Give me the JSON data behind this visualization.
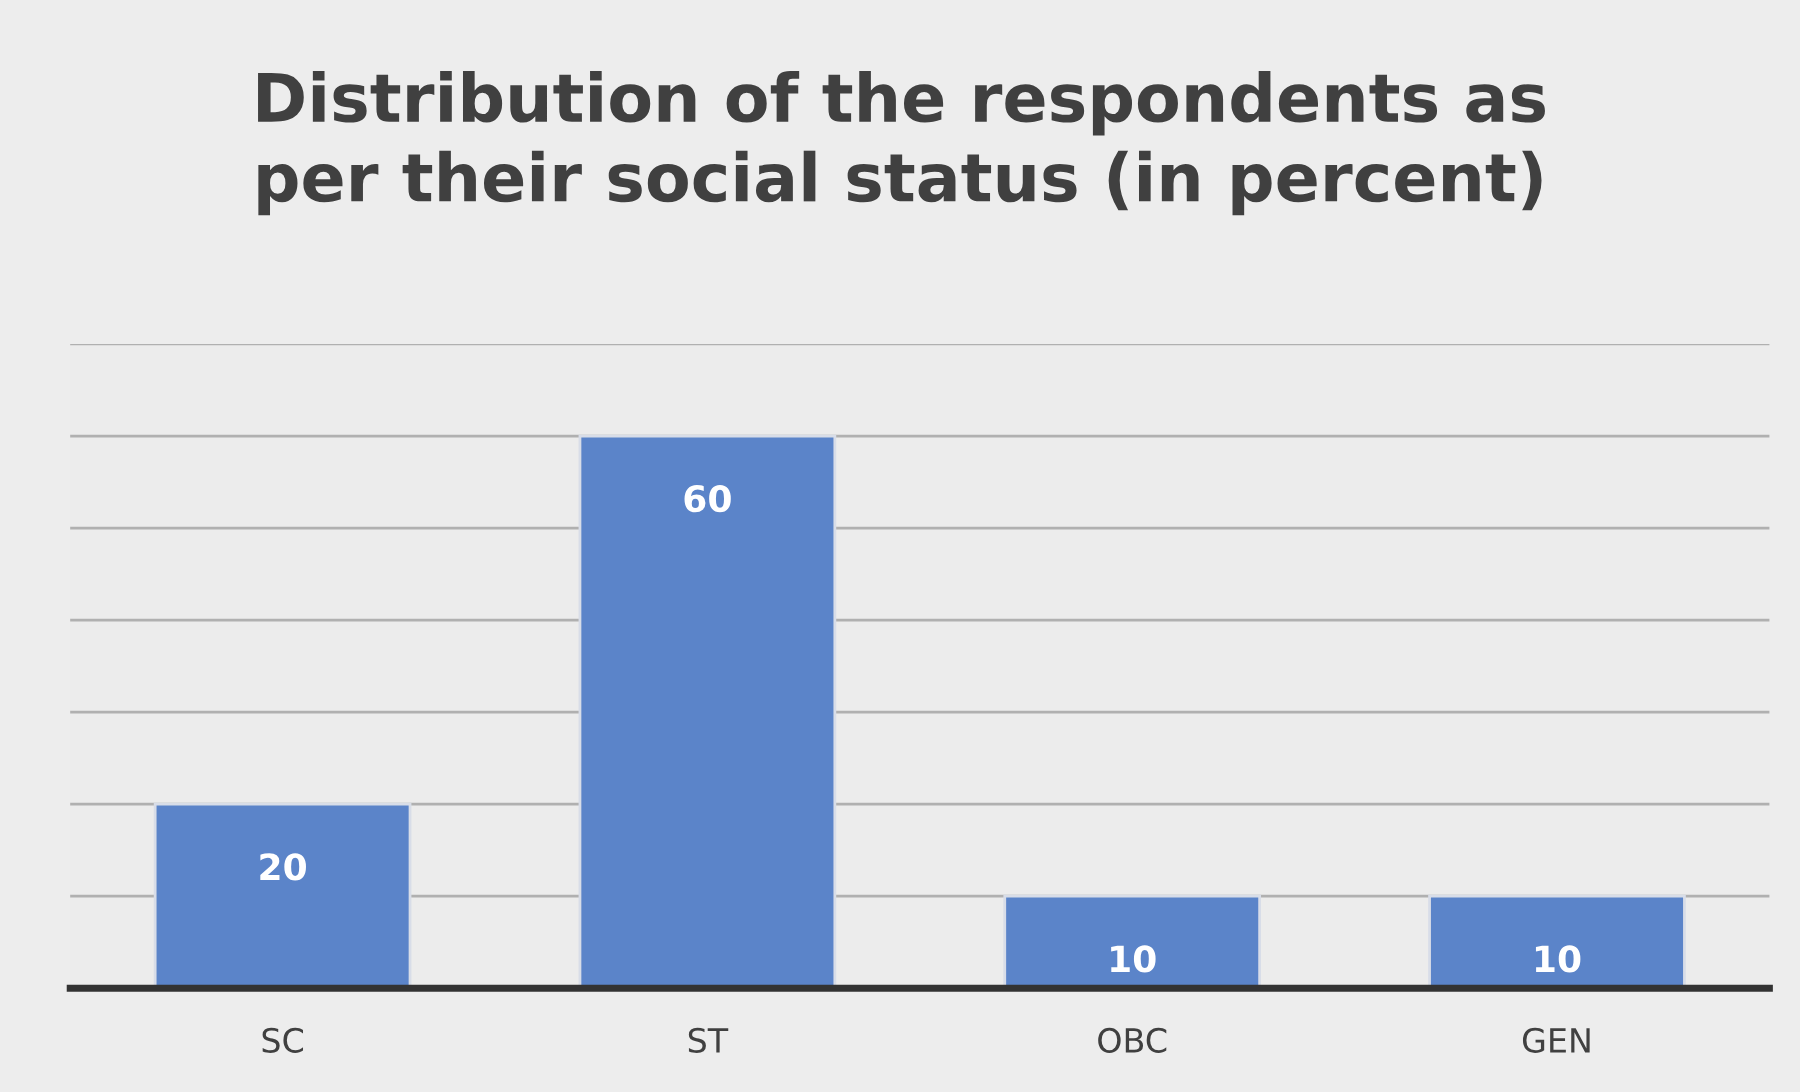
{
  "chart_data": {
    "type": "bar",
    "title": "Distribution of the respondents as\nper their social status (in percent)",
    "categories": [
      "SC",
      "ST",
      "OBC",
      "GEN"
    ],
    "values": [
      20,
      60,
      10,
      10
    ],
    "color": "#5b84c9",
    "ylim": [
      0,
      70
    ],
    "yticks": [
      {
        "value": 0,
        "label": null
      },
      {
        "value": 10,
        "label": null
      },
      {
        "value": 20,
        "label": null
      },
      {
        "value": 30,
        "label": null
      },
      {
        "value": 40,
        "label": null
      },
      {
        "value": 50,
        "label": null
      },
      {
        "value": 60,
        "label": null
      },
      {
        "value": 70,
        "label": null
      }
    ],
    "tick_labels": "x",
    "grid": "y",
    "data_labels": true,
    "legend": false
  }
}
